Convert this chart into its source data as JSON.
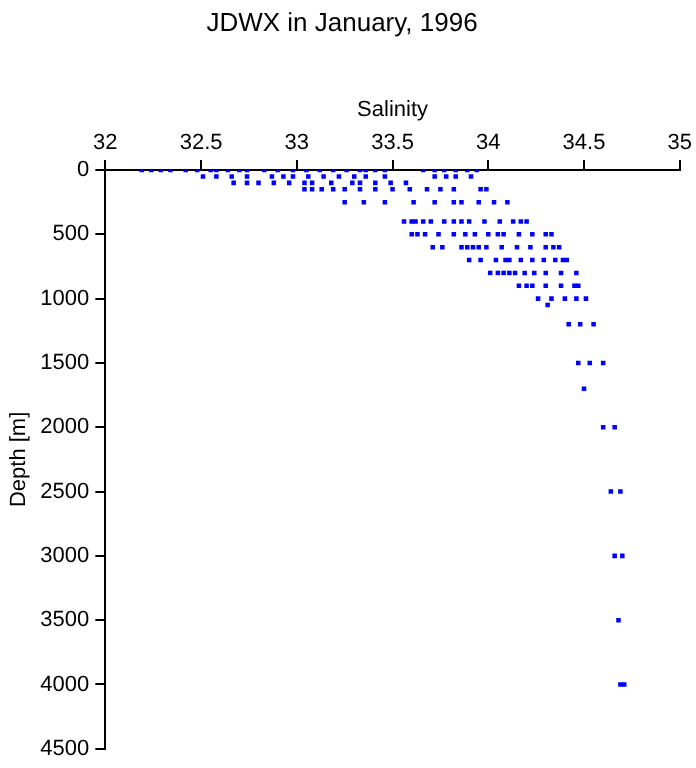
{
  "chart_data": {
    "type": "scatter",
    "title": "JDWX in January, 1996",
    "xlabel": "Salinity",
    "ylabel": "Depth [m]",
    "xlim": [
      32,
      35
    ],
    "xticks": [
      32,
      32.5,
      33,
      33.5,
      34,
      34.5,
      35
    ],
    "ylim": [
      4500,
      0
    ],
    "yticks": [
      0,
      500,
      1000,
      1500,
      2000,
      2500,
      3000,
      3500,
      4000,
      4500
    ],
    "grid": false,
    "legend": false,
    "marker": "square",
    "series": [
      {
        "color": "#0000ff",
        "x": [
          32.19,
          32.24,
          32.29,
          32.34,
          32.42,
          32.48,
          32.55,
          32.58,
          32.64,
          32.7,
          32.74,
          32.83,
          32.9,
          32.98,
          33.05,
          33.12,
          33.19,
          33.26,
          33.33,
          33.36,
          33.41,
          33.46,
          33.66,
          33.72,
          33.77,
          33.83,
          33.89,
          33.94,
          32.51,
          32.58,
          32.66,
          32.74,
          32.87,
          32.93,
          32.98,
          33.06,
          33.14,
          33.22,
          33.3,
          33.36,
          33.46,
          33.72,
          33.78,
          33.83,
          33.91,
          32.67,
          32.74,
          32.8,
          32.88,
          32.96,
          33.04,
          33.08,
          33.18,
          33.29,
          33.33,
          33.41,
          33.49,
          33.57,
          33.04,
          33.08,
          33.13,
          33.19,
          33.25,
          33.33,
          33.41,
          33.5,
          33.59,
          33.68,
          33.75,
          33.82,
          33.96,
          33.99,
          33.25,
          33.35,
          33.46,
          33.61,
          33.72,
          33.82,
          33.86,
          33.95,
          34.03,
          34.1,
          33.56,
          33.6,
          33.62,
          33.66,
          33.7,
          33.77,
          33.82,
          33.86,
          33.9,
          33.98,
          34.06,
          34.13,
          34.17,
          34.2,
          33.6,
          33.63,
          33.67,
          33.74,
          33.82,
          33.88,
          33.93,
          34.0,
          34.05,
          34.08,
          34.16,
          34.23,
          34.3,
          34.33,
          33.71,
          33.76,
          33.86,
          33.89,
          33.92,
          33.95,
          33.99,
          34.07,
          34.15,
          34.22,
          34.3,
          34.34,
          34.37,
          33.9,
          33.96,
          34.04,
          34.09,
          34.11,
          34.17,
          34.23,
          34.29,
          34.35,
          34.39,
          34.41,
          34.01,
          34.05,
          34.08,
          34.11,
          34.14,
          34.19,
          34.24,
          34.3,
          34.38,
          34.46,
          34.16,
          34.2,
          34.23,
          34.3,
          34.38,
          34.45,
          34.47,
          34.26,
          34.33,
          34.4,
          34.46,
          34.51,
          34.31,
          34.42,
          34.48,
          34.55,
          34.47,
          34.53,
          34.6,
          34.5,
          34.6,
          34.66,
          34.64,
          34.69,
          34.66,
          34.7,
          34.68,
          34.69,
          34.71
        ],
        "values": [
          0,
          0,
          0,
          0,
          0,
          0,
          0,
          0,
          0,
          0,
          0,
          0,
          0,
          0,
          0,
          0,
          0,
          0,
          0,
          0,
          0,
          0,
          0,
          0,
          0,
          0,
          0,
          0,
          50,
          50,
          50,
          50,
          50,
          50,
          50,
          50,
          50,
          50,
          50,
          50,
          50,
          50,
          50,
          50,
          50,
          100,
          100,
          100,
          100,
          100,
          100,
          100,
          100,
          100,
          100,
          100,
          100,
          100,
          150,
          150,
          150,
          150,
          150,
          150,
          150,
          150,
          150,
          150,
          150,
          150,
          150,
          150,
          250,
          250,
          250,
          250,
          250,
          250,
          250,
          250,
          250,
          250,
          400,
          400,
          400,
          400,
          400,
          400,
          400,
          400,
          400,
          400,
          400,
          400,
          400,
          400,
          500,
          500,
          500,
          500,
          500,
          500,
          500,
          500,
          500,
          500,
          500,
          500,
          500,
          500,
          600,
          600,
          600,
          600,
          600,
          600,
          600,
          600,
          600,
          600,
          600,
          600,
          600,
          700,
          700,
          700,
          700,
          700,
          700,
          700,
          700,
          700,
          700,
          700,
          800,
          800,
          800,
          800,
          800,
          800,
          800,
          800,
          800,
          800,
          900,
          900,
          900,
          900,
          900,
          900,
          900,
          1000,
          1000,
          1000,
          1000,
          1000,
          1050,
          1200,
          1200,
          1200,
          1500,
          1500,
          1500,
          1700,
          2000,
          2000,
          2500,
          2500,
          3000,
          3000,
          3500,
          4000,
          4000
        ]
      }
    ]
  }
}
